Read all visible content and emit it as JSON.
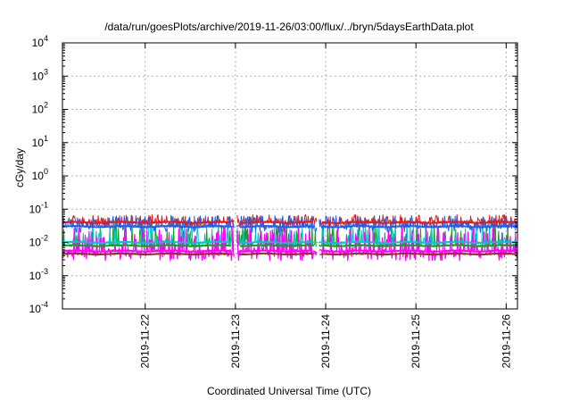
{
  "chart_data": {
    "type": "line",
    "title": "/data/run/goesPlots/archive/2019-11-26/03:00/flux/../bryn/5daysEarthData.plot",
    "xlabel": "Coordinated Universal Time (UTC)",
    "ylabel": "cGy/day",
    "y_scale": "log",
    "y_ticks": [
      {
        "exp": "-4",
        "value": 0.0001
      },
      {
        "exp": "-3",
        "value": 0.001
      },
      {
        "exp": "-2",
        "value": 0.01
      },
      {
        "exp": "-1",
        "value": 0.1
      },
      {
        "exp": "0",
        "value": 1
      },
      {
        "exp": "1",
        "value": 10
      },
      {
        "exp": "2",
        "value": 100
      },
      {
        "exp": "3",
        "value": 1000
      },
      {
        "exp": "4",
        "value": 10000
      }
    ],
    "y_tick_base": "10",
    "ylim": [
      0.0001,
      10000
    ],
    "xlim": [
      "2019-11-21T02:00",
      "2019-11-26T03:00"
    ],
    "x_ticks": [
      {
        "label": "2019-11-22",
        "value": "2019-11-22T00:00"
      },
      {
        "label": "2019-11-23",
        "value": "2019-11-23T00:00"
      },
      {
        "label": "2019-11-24",
        "value": "2019-11-24T00:00"
      },
      {
        "label": "2019-11-25",
        "value": "2019-11-25T00:00"
      },
      {
        "label": "2019-11-26",
        "value": "2019-11-26T00:00"
      }
    ],
    "grid": true,
    "series": [
      {
        "color": "#e8191a",
        "values_at_x_ticks": [
          0.04,
          0.04,
          0.041,
          0.04,
          0.041
        ],
        "level": 0.04,
        "spike_max": 0.068,
        "spike_min": 0.022
      },
      {
        "color": "#19a019",
        "values_at_x_ticks": [
          0.008,
          0.008,
          0.008,
          0.0075,
          0.0075
        ],
        "level": 0.008,
        "spike_max": 0.04,
        "spike_min": 0.0065
      },
      {
        "color": "#00c8c8",
        "values_at_x_ticks": [
          0.01,
          0.01,
          0.01,
          0.01,
          0.01
        ],
        "level": 0.01,
        "spike_max": 0.045,
        "spike_min": 0.008
      },
      {
        "color": "#2060e8",
        "values_at_x_ticks": [
          0.03,
          0.03,
          0.031,
          0.03,
          0.03
        ],
        "level": 0.03,
        "spike_max": 0.065,
        "spike_min": 0.015
      },
      {
        "color": "#8b3a1a",
        "values_at_x_ticks": [
          0.0045,
          0.0045,
          0.0045,
          0.0045,
          0.0045
        ],
        "level": 0.0045,
        "spike_max": 0.0065,
        "spike_min": 0.004
      },
      {
        "color": "#ff00ff",
        "values_at_x_ticks": [
          0.0055,
          0.0055,
          0.0055,
          0.0055,
          0.0055
        ],
        "level": 0.0055,
        "spike_max": 0.03,
        "spike_min": 0.0028
      }
    ]
  }
}
